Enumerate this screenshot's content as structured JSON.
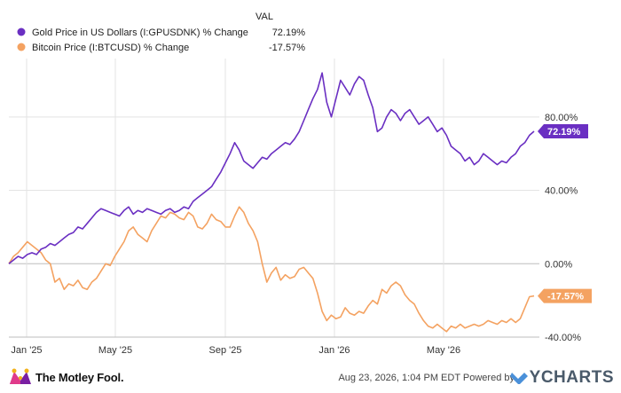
{
  "chart_data": {
    "type": "line",
    "legend_header": "VAL",
    "x_ticks": [
      "Jan '25",
      "May '25",
      "Sep '25",
      "Jan '26",
      "May '26"
    ],
    "y_ticks": [
      "-40.00%",
      "0.00%",
      "40.00%",
      "80.00%"
    ],
    "ylim": [
      -40,
      107
    ],
    "grid": true,
    "legend_position": "top-left",
    "series": [
      {
        "name": "Gold Price in US Dollars (I:GPUSDNK) % Change",
        "value_label": "72.19%",
        "badge": "72.19%",
        "color": "#6a2fc2",
        "values": [
          0,
          2,
          4,
          3,
          5,
          6,
          5,
          8,
          9,
          11,
          10,
          12,
          14,
          16,
          17,
          20,
          19,
          22,
          25,
          28,
          30,
          29,
          28,
          27,
          26,
          29,
          31,
          27,
          29,
          28,
          30,
          29,
          28,
          27,
          29,
          30,
          28,
          29,
          31,
          30,
          34,
          36,
          38,
          40,
          42,
          46,
          50,
          55,
          60,
          66,
          62,
          56,
          54,
          52,
          55,
          58,
          57,
          60,
          62,
          64,
          66,
          65,
          68,
          72,
          78,
          84,
          90,
          95,
          104,
          88,
          80,
          90,
          100,
          96,
          92,
          98,
          102,
          100,
          92,
          85,
          72,
          74,
          80,
          84,
          82,
          78,
          82,
          84,
          80,
          76,
          78,
          80,
          76,
          72,
          74,
          70,
          64,
          62,
          60,
          56,
          58,
          54,
          56,
          60,
          58,
          56,
          54,
          56,
          55,
          58,
          60,
          64,
          66,
          70,
          72.19
        ]
      },
      {
        "name": "Bitcoin Price (I:BTCUSD) % Change",
        "value_label": "-17.57%",
        "badge": "-17.57%",
        "color": "#f4a261",
        "values": [
          0,
          4,
          6,
          9,
          12,
          10,
          8,
          6,
          2,
          0,
          -10,
          -8,
          -14,
          -11,
          -12,
          -9,
          -13,
          -14,
          -10,
          -8,
          -4,
          0,
          -1,
          4,
          8,
          12,
          18,
          20,
          16,
          14,
          12,
          18,
          22,
          26,
          25,
          28,
          27,
          25,
          24,
          28,
          26,
          20,
          19,
          22,
          27,
          24,
          23,
          20,
          20,
          26,
          31,
          28,
          22,
          18,
          12,
          0,
          -10,
          -5,
          -2,
          -9,
          -6,
          -8,
          -7,
          -3,
          -2,
          -5,
          -8,
          -16,
          -26,
          -31,
          -28,
          -30,
          -29,
          -24,
          -27,
          -28,
          -26,
          -27,
          -23,
          -20,
          -22,
          -14,
          -16,
          -12,
          -10,
          -12,
          -17,
          -20,
          -22,
          -27,
          -31,
          -34,
          -35,
          -33,
          -35,
          -37,
          -34,
          -35,
          -33,
          -35,
          -34,
          -33,
          -34,
          -33,
          -31,
          -32,
          -33,
          -31,
          -32,
          -30,
          -32,
          -30,
          -24,
          -18,
          -17.57
        ]
      }
    ]
  },
  "footer": {
    "brand_left": "The Motley Fool.",
    "timestamp": "Aug 23, 2026, 1:04 PM EDT  Powered by",
    "brand_right": "YCHARTS"
  }
}
